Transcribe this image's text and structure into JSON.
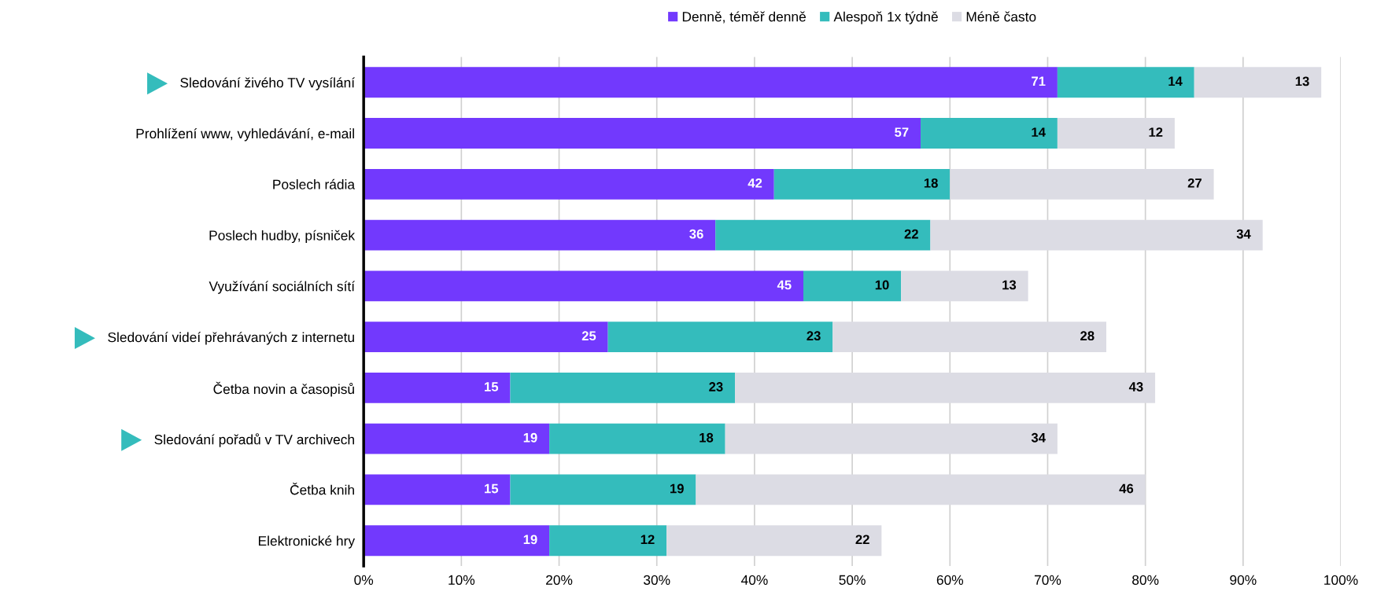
{
  "chart_data": {
    "type": "bar",
    "orientation": "horizontal",
    "stacked": true,
    "categories": [
      "Sledování živého TV vysílání",
      "Prohlížení www, vyhledávání, e-mail",
      "Poslech rádia",
      "Poslech hudby, písniček",
      "Využívání sociálních sítí",
      "Sledování videí přehrávaných z internetu",
      "Četba novin a časopisů",
      "Sledování pořadů v TV archivech",
      "Četba knih",
      "Elektronické hry"
    ],
    "series": [
      {
        "name": "Denně, téměř denně",
        "color": "#7239fd",
        "values": [
          71,
          57,
          42,
          36,
          45,
          25,
          15,
          19,
          15,
          19
        ]
      },
      {
        "name": "Alespoň 1x týdně",
        "color": "#34bcbc",
        "values": [
          14,
          14,
          18,
          22,
          10,
          23,
          23,
          18,
          19,
          12
        ]
      },
      {
        "name": "Méně často",
        "color": "#dcdce4",
        "values": [
          13,
          12,
          27,
          34,
          13,
          28,
          43,
          34,
          46,
          22
        ]
      }
    ],
    "xlim": [
      0,
      100
    ],
    "xticks": [
      {
        "value": 0,
        "label": "0%"
      },
      {
        "value": 10,
        "label": "10%"
      },
      {
        "value": 20,
        "label": "20%"
      },
      {
        "value": 30,
        "label": "30%"
      },
      {
        "value": 40,
        "label": "40%"
      },
      {
        "value": 50,
        "label": "50%"
      },
      {
        "value": 60,
        "label": "60%"
      },
      {
        "value": 70,
        "label": "70%"
      },
      {
        "value": 80,
        "label": "80%"
      },
      {
        "value": 90,
        "label": "90%"
      },
      {
        "value": 100,
        "label": "100%"
      }
    ],
    "grid": "x",
    "legend": "top",
    "data_labels": true
  }
}
